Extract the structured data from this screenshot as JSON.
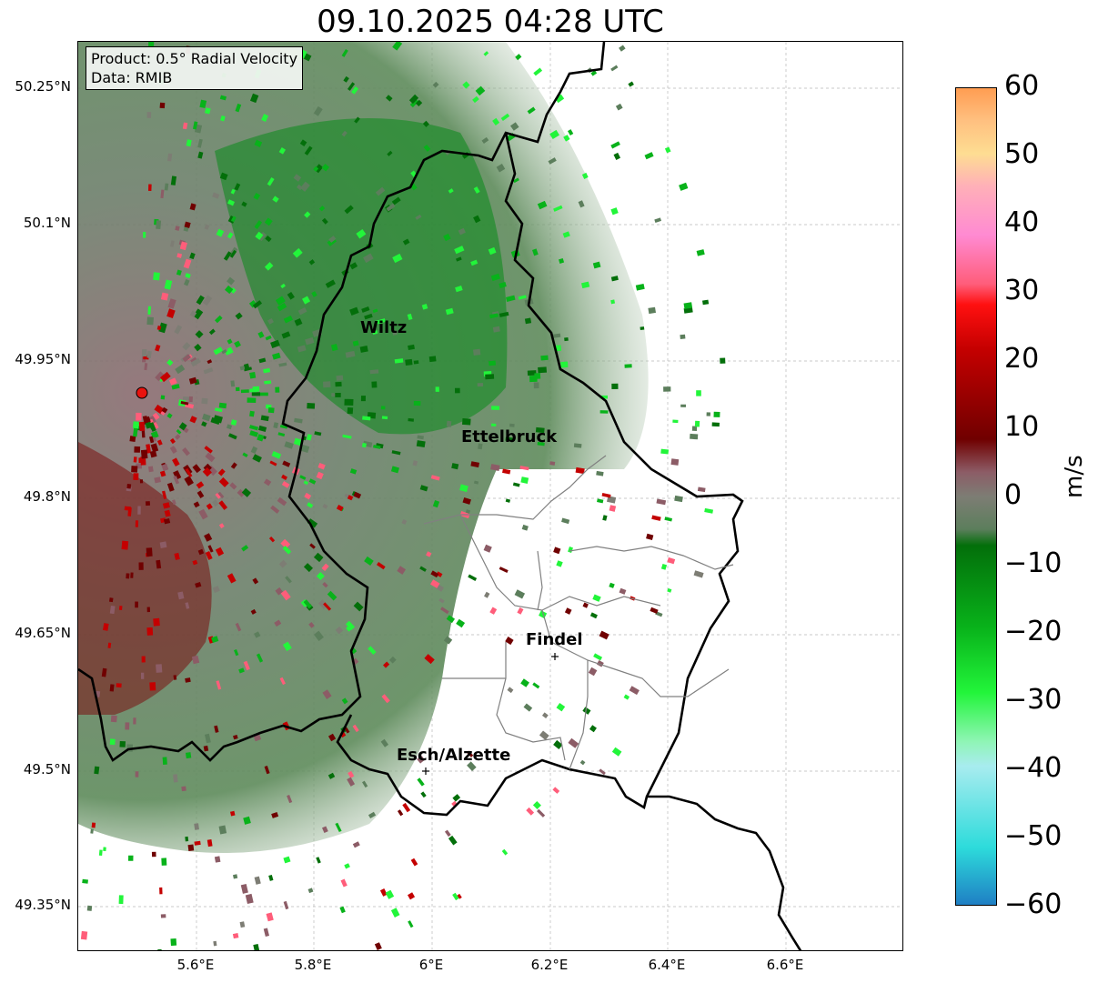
{
  "title": "09.10.2025 04:28 UTC",
  "info": {
    "product": "Product: 0.5° Radial Velocity",
    "data_source": "Data: RMIB"
  },
  "axes": {
    "lat_ticks": [
      "50.25°N",
      "50.1°N",
      "49.95°N",
      "49.8°N",
      "49.65°N",
      "49.5°N",
      "49.35°N"
    ],
    "lon_ticks": [
      "5.6°E",
      "5.8°E",
      "6°E",
      "6.2°E",
      "6.4°E",
      "6.6°E"
    ]
  },
  "cities": {
    "wiltz": "Wiltz",
    "ettelbruck": "Ettelbruck",
    "findel": "Findel",
    "esch": "Esch/Alzette"
  },
  "colorbar": {
    "label": "m/s",
    "ticks": [
      "60",
      "50",
      "40",
      "30",
      "20",
      "10",
      "0",
      "−10",
      "−20",
      "−30",
      "−40",
      "−50",
      "−60"
    ],
    "range": [
      -60,
      60
    ],
    "colors": {
      "neg60": "#1f7fc4",
      "neg50": "#2ddbdb",
      "neg40": "#a8ecef",
      "neg33": "#8ff5b5",
      "neg30": "#22f53a",
      "neg20": "#08b21a",
      "neg10": "#036f0a",
      "neg5": "#5c7e5c",
      "zero": "#7d7d74",
      "pos5": "#8c5c66",
      "pos10": "#700000",
      "pos20": "#c40000",
      "pos27": "#ff1010",
      "pos32": "#ff5d7a",
      "pos40": "#ff8ad2",
      "pos47": "#ffb0b8",
      "pos50": "#fedd92",
      "pos55": "#ffc080",
      "pos60": "#ff9d52"
    }
  },
  "radar_site_color": "#e8140f"
}
